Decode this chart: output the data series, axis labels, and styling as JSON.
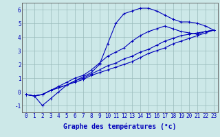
{
  "xlabel": "Graphe des températures (°c)",
  "bg_color": "#cce8e8",
  "line_color": "#0000bb",
  "grid_color": "#99bbbb",
  "xlim": [
    -0.5,
    23.5
  ],
  "ylim": [
    -1.5,
    6.5
  ],
  "xticks": [
    0,
    1,
    2,
    3,
    4,
    5,
    6,
    7,
    8,
    9,
    10,
    11,
    12,
    13,
    14,
    15,
    16,
    17,
    18,
    19,
    20,
    21,
    22,
    23
  ],
  "yticks": [
    -1,
    0,
    1,
    2,
    3,
    4,
    5,
    6
  ],
  "series": [
    [
      -0.2,
      -0.3,
      -1.0,
      -0.5,
      0.0,
      0.5,
      0.8,
      1.1,
      1.4,
      2.0,
      3.5,
      5.0,
      5.7,
      5.9,
      6.1,
      6.1,
      5.9,
      5.6,
      5.3,
      5.1,
      5.1,
      5.0,
      4.8,
      4.5
    ],
    [
      -0.2,
      -0.3,
      -0.2,
      0.1,
      0.4,
      0.7,
      1.0,
      1.2,
      1.6,
      2.1,
      2.6,
      2.9,
      3.2,
      3.7,
      4.1,
      4.4,
      4.6,
      4.8,
      4.6,
      4.4,
      4.3,
      4.2,
      4.4,
      4.5
    ],
    [
      -0.2,
      -0.3,
      -0.2,
      0.1,
      0.3,
      0.5,
      0.8,
      1.0,
      1.3,
      1.6,
      1.9,
      2.1,
      2.4,
      2.6,
      2.9,
      3.1,
      3.4,
      3.7,
      3.9,
      4.1,
      4.2,
      4.3,
      4.4,
      4.5
    ],
    [
      -0.2,
      -0.3,
      -0.2,
      0.1,
      0.3,
      0.5,
      0.7,
      0.9,
      1.2,
      1.4,
      1.6,
      1.8,
      2.0,
      2.2,
      2.5,
      2.8,
      3.0,
      3.2,
      3.5,
      3.7,
      3.9,
      4.1,
      4.3,
      4.5
    ]
  ],
  "marker": "+",
  "markersize": 3,
  "linewidth": 0.8,
  "tick_fontsize": 5.5,
  "label_fontsize": 7.0
}
